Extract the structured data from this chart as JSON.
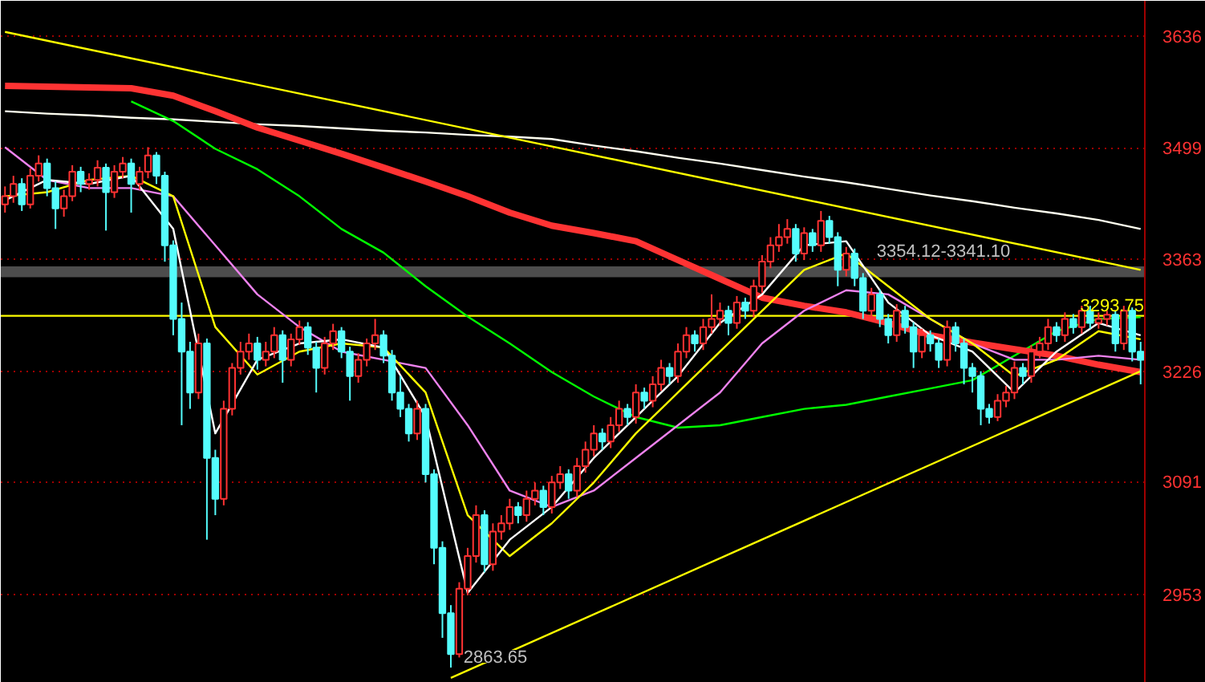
{
  "chart_data": {
    "type": "candlestick",
    "categories": [
      null,
      null,
      null,
      null,
      null,
      null,
      null,
      null,
      null,
      null,
      null,
      null,
      null,
      null,
      null,
      null,
      null,
      null,
      null,
      null,
      null,
      null,
      null,
      null,
      null,
      null,
      null,
      null,
      null,
      null,
      null,
      null,
      null,
      null,
      null,
      null,
      null,
      null,
      null,
      null,
      null,
      null,
      null,
      null,
      null,
      null,
      null,
      null,
      null,
      null,
      null,
      null,
      null,
      null,
      null,
      null,
      null,
      null,
      null,
      null,
      null,
      null,
      null,
      null,
      null,
      null,
      null,
      null,
      null,
      null,
      null,
      null,
      null,
      null,
      null,
      null,
      null,
      null,
      null,
      null,
      null,
      null,
      null,
      null,
      null,
      null,
      null,
      null,
      null,
      null,
      null,
      null,
      null,
      null,
      null,
      null,
      null,
      null,
      null,
      null,
      null,
      null,
      null,
      null,
      null,
      null,
      null,
      null,
      null,
      null,
      null,
      null,
      null,
      null,
      null,
      null,
      null,
      null,
      null,
      null,
      null,
      null,
      null,
      null,
      null,
      null,
      null,
      null,
      null,
      null,
      null,
      null,
      null,
      null,
      null,
      null
    ],
    "ohlc": [
      [
        3430,
        3452,
        3420,
        3440
      ],
      [
        3440,
        3465,
        3432,
        3455
      ],
      [
        3455,
        3462,
        3422,
        3430
      ],
      [
        3430,
        3474,
        3425,
        3465
      ],
      [
        3465,
        3490,
        3458,
        3480
      ],
      [
        3480,
        3486,
        3440,
        3450
      ],
      [
        3450,
        3458,
        3400,
        3425
      ],
      [
        3425,
        3448,
        3415,
        3440
      ],
      [
        3440,
        3478,
        3434,
        3470
      ],
      [
        3470,
        3476,
        3445,
        3455
      ],
      [
        3455,
        3468,
        3448,
        3460
      ],
      [
        3460,
        3484,
        3452,
        3475
      ],
      [
        3475,
        3480,
        3398,
        3445
      ],
      [
        3445,
        3478,
        3438,
        3470
      ],
      [
        3470,
        3488,
        3462,
        3480
      ],
      [
        3480,
        3486,
        3420,
        3455
      ],
      [
        3455,
        3476,
        3448,
        3470
      ],
      [
        3470,
        3500,
        3462,
        3490
      ],
      [
        3490,
        3494,
        3455,
        3465
      ],
      [
        3465,
        3470,
        3360,
        3380
      ],
      [
        3380,
        3386,
        3270,
        3290
      ],
      [
        3290,
        3310,
        3160,
        3250
      ],
      [
        3250,
        3262,
        3180,
        3200
      ],
      [
        3200,
        3272,
        3192,
        3260
      ],
      [
        3260,
        3266,
        3020,
        3120
      ],
      [
        3120,
        3130,
        3050,
        3070
      ],
      [
        3070,
        3190,
        3062,
        3180
      ],
      [
        3180,
        3236,
        3172,
        3230
      ],
      [
        3230,
        3262,
        3222,
        3250
      ],
      [
        3250,
        3272,
        3240,
        3260
      ],
      [
        3260,
        3268,
        3228,
        3240
      ],
      [
        3240,
        3262,
        3232,
        3250
      ],
      [
        3250,
        3280,
        3242,
        3270
      ],
      [
        3270,
        3276,
        3212,
        3240
      ],
      [
        3240,
        3272,
        3232,
        3265
      ],
      [
        3265,
        3288,
        3258,
        3280
      ],
      [
        3280,
        3286,
        3246,
        3255
      ],
      [
        3255,
        3262,
        3200,
        3230
      ],
      [
        3230,
        3268,
        3222,
        3260
      ],
      [
        3260,
        3284,
        3252,
        3275
      ],
      [
        3275,
        3280,
        3242,
        3250
      ],
      [
        3250,
        3256,
        3190,
        3220
      ],
      [
        3220,
        3248,
        3212,
        3240
      ],
      [
        3240,
        3266,
        3232,
        3260
      ],
      [
        3260,
        3290,
        3252,
        3270
      ],
      [
        3270,
        3276,
        3236,
        3245
      ],
      [
        3245,
        3252,
        3190,
        3200
      ],
      [
        3200,
        3220,
        3170,
        3180
      ],
      [
        3180,
        3186,
        3140,
        3150
      ],
      [
        3150,
        3190,
        3142,
        3180
      ],
      [
        3180,
        3186,
        3090,
        3100
      ],
      [
        3100,
        3106,
        2990,
        3010
      ],
      [
        3010,
        3018,
        2900,
        2930
      ],
      [
        2930,
        2940,
        2863.65,
        2880
      ],
      [
        2880,
        2968,
        2876,
        2960
      ],
      [
        2960,
        3010,
        2952,
        3000
      ],
      [
        3000,
        3062,
        2992,
        3050
      ],
      [
        3050,
        3056,
        2980,
        2990
      ],
      [
        2990,
        3040,
        2982,
        3030
      ],
      [
        3030,
        3050,
        3020,
        3040
      ],
      [
        3040,
        3070,
        3032,
        3060
      ],
      [
        3060,
        3066,
        3040,
        3050
      ],
      [
        3050,
        3080,
        3042,
        3070
      ],
      [
        3070,
        3090,
        3062,
        3080
      ],
      [
        3080,
        3086,
        3050,
        3060
      ],
      [
        3060,
        3098,
        3052,
        3090
      ],
      [
        3090,
        3110,
        3082,
        3100
      ],
      [
        3100,
        3106,
        3070,
        3080
      ],
      [
        3080,
        3120,
        3072,
        3110
      ],
      [
        3110,
        3140,
        3102,
        3130
      ],
      [
        3130,
        3160,
        3122,
        3150
      ],
      [
        3150,
        3156,
        3130,
        3140
      ],
      [
        3140,
        3170,
        3132,
        3160
      ],
      [
        3160,
        3190,
        3152,
        3180
      ],
      [
        3180,
        3186,
        3160,
        3170
      ],
      [
        3170,
        3210,
        3162,
        3200
      ],
      [
        3200,
        3206,
        3180,
        3190
      ],
      [
        3190,
        3220,
        3182,
        3210
      ],
      [
        3210,
        3240,
        3202,
        3230
      ],
      [
        3230,
        3236,
        3210,
        3220
      ],
      [
        3220,
        3260,
        3212,
        3250
      ],
      [
        3250,
        3280,
        3242,
        3270
      ],
      [
        3270,
        3276,
        3250,
        3260
      ],
      [
        3260,
        3290,
        3252,
        3280
      ],
      [
        3280,
        3320,
        3272,
        3290
      ],
      [
        3290,
        3310,
        3282,
        3300
      ],
      [
        3300,
        3306,
        3270,
        3285
      ],
      [
        3285,
        3318,
        3278,
        3310
      ],
      [
        3310,
        3316,
        3290,
        3300
      ],
      [
        3300,
        3338,
        3292,
        3330
      ],
      [
        3330,
        3368,
        3322,
        3360
      ],
      [
        3360,
        3390,
        3352,
        3380
      ],
      [
        3380,
        3406,
        3372,
        3390
      ],
      [
        3390,
        3412,
        3382,
        3400
      ],
      [
        3400,
        3406,
        3360,
        3370
      ],
      [
        3370,
        3402,
        3362,
        3395
      ],
      [
        3395,
        3400,
        3372,
        3380
      ],
      [
        3380,
        3422,
        3372,
        3410
      ],
      [
        3410,
        3416,
        3382,
        3390
      ],
      [
        3390,
        3396,
        3330,
        3350
      ],
      [
        3350,
        3378,
        3342,
        3370
      ],
      [
        3370,
        3376,
        3330,
        3340
      ],
      [
        3340,
        3346,
        3290,
        3300
      ],
      [
        3300,
        3328,
        3292,
        3320
      ],
      [
        3320,
        3326,
        3280,
        3290
      ],
      [
        3290,
        3296,
        3260,
        3270
      ],
      [
        3270,
        3308,
        3262,
        3300
      ],
      [
        3300,
        3306,
        3272,
        3280
      ],
      [
        3280,
        3286,
        3230,
        3250
      ],
      [
        3250,
        3278,
        3242,
        3270
      ],
      [
        3270,
        3276,
        3250,
        3260
      ],
      [
        3260,
        3266,
        3230,
        3240
      ],
      [
        3240,
        3288,
        3232,
        3280
      ],
      [
        3280,
        3286,
        3250,
        3260
      ],
      [
        3260,
        3266,
        3210,
        3230
      ],
      [
        3230,
        3236,
        3200,
        3220
      ],
      [
        3220,
        3226,
        3160,
        3180
      ],
      [
        3180,
        3186,
        3162,
        3170
      ],
      [
        3170,
        3198,
        3165,
        3190
      ],
      [
        3190,
        3208,
        3182,
        3200
      ],
      [
        3200,
        3238,
        3192,
        3230
      ],
      [
        3230,
        3236,
        3210,
        3220
      ],
      [
        3220,
        3258,
        3212,
        3250
      ],
      [
        3250,
        3268,
        3242,
        3260
      ],
      [
        3260,
        3290,
        3252,
        3280
      ],
      [
        3280,
        3286,
        3262,
        3270
      ],
      [
        3270,
        3298,
        3262,
        3290
      ],
      [
        3290,
        3296,
        3272,
        3280
      ],
      [
        3280,
        3306,
        3272,
        3300
      ],
      [
        3300,
        3306,
        3278,
        3285
      ],
      [
        3285,
        3298,
        3278,
        3290
      ],
      [
        3290,
        3300,
        3282,
        3295
      ],
      [
        3295,
        3300,
        3250,
        3260
      ],
      [
        3260,
        3306,
        3252,
        3300
      ],
      [
        3300,
        3304,
        3238,
        3250
      ],
      [
        3250,
        3262,
        3210,
        3240
      ]
    ],
    "series": [
      {
        "type": "line",
        "color": "#fffff0",
        "values": [
          3544,
          null,
          null,
          null,
          null,
          3541,
          null,
          null,
          null,
          null,
          3539,
          null,
          null,
          null,
          null,
          3536,
          null,
          null,
          null,
          null,
          3534,
          null,
          null,
          null,
          null,
          3531,
          null,
          null,
          null,
          null,
          3528,
          null,
          null,
          null,
          null,
          3526,
          null,
          null,
          null,
          null,
          3523,
          null,
          null,
          null,
          null,
          3520,
          null,
          null,
          null,
          null,
          3518,
          null,
          null,
          null,
          null,
          3515,
          null,
          null,
          null,
          null,
          3513,
          null,
          null,
          null,
          null,
          3510,
          null,
          null,
          null,
          null,
          3502,
          null,
          null,
          null,
          null,
          3495,
          null,
          null,
          null,
          null,
          3487,
          null,
          null,
          null,
          null,
          3480,
          null,
          null,
          null,
          null,
          3472,
          null,
          null,
          null,
          null,
          3464,
          null,
          null,
          null,
          null,
          3457,
          null,
          null,
          null,
          null,
          3449,
          null,
          null,
          null,
          null,
          3441,
          null,
          null,
          null,
          null,
          3434,
          null,
          null,
          null,
          null,
          3426,
          null,
          null,
          null,
          null,
          3419,
          null,
          null,
          null,
          null,
          3411,
          null,
          null,
          null,
          null,
          3400
        ]
      },
      {
        "type": "line",
        "color": "#00ff00",
        "values": [
          null,
          null,
          null,
          null,
          null,
          null,
          null,
          null,
          null,
          null,
          null,
          null,
          null,
          null,
          null,
          3556,
          null,
          null,
          null,
          null,
          3532,
          null,
          null,
          null,
          null,
          3498,
          null,
          null,
          null,
          null,
          3473,
          null,
          null,
          null,
          null,
          3440,
          null,
          null,
          null,
          null,
          3400,
          null,
          null,
          null,
          null,
          3371,
          null,
          null,
          null,
          null,
          3330,
          null,
          null,
          null,
          null,
          3293,
          null,
          null,
          null,
          null,
          3260,
          null,
          null,
          null,
          null,
          3225,
          null,
          null,
          null,
          null,
          3195,
          null,
          null,
          null,
          null,
          3170,
          null,
          null,
          null,
          null,
          3157,
          null,
          null,
          null,
          null,
          3160,
          null,
          null,
          null,
          null,
          3170,
          null,
          null,
          null,
          null,
          3180,
          null,
          null,
          null,
          null,
          3185,
          null,
          null,
          null,
          null,
          3195,
          null,
          null,
          null,
          null,
          3205,
          null,
          null,
          null,
          null,
          3215,
          null,
          null,
          null,
          null,
          3245,
          null,
          null,
          null,
          null,
          3275,
          null,
          null,
          null,
          null,
          3290,
          null,
          null,
          null,
          null,
          3292
        ]
      },
      {
        "type": "line",
        "color": "#ff3333",
        "values": [
          3575,
          null,
          null,
          null,
          null,
          3574,
          null,
          null,
          null,
          null,
          3573,
          null,
          null,
          null,
          null,
          3572,
          null,
          null,
          null,
          null,
          3563,
          null,
          null,
          null,
          null,
          3544,
          null,
          null,
          null,
          null,
          3524,
          null,
          null,
          null,
          null,
          3508,
          null,
          null,
          null,
          null,
          3492,
          null,
          null,
          null,
          null,
          3475,
          null,
          null,
          null,
          null,
          3458,
          null,
          null,
          null,
          null,
          3440,
          null,
          null,
          null,
          null,
          3420,
          null,
          null,
          null,
          null,
          3404,
          null,
          null,
          null,
          null,
          3395,
          null,
          null,
          null,
          null,
          3385,
          null,
          null,
          null,
          null,
          3362,
          null,
          null,
          null,
          null,
          3339,
          null,
          null,
          null,
          null,
          3316,
          null,
          null,
          null,
          null,
          3306,
          null,
          null,
          null,
          null,
          3298,
          null,
          null,
          null,
          null,
          3285,
          null,
          null,
          null,
          null,
          3270,
          null,
          null,
          null,
          null,
          3261,
          null,
          null,
          null,
          null,
          3253,
          null,
          null,
          null,
          null,
          3245,
          null,
          null,
          null,
          null,
          3234,
          null,
          null,
          null,
          null,
          3225
        ]
      },
      {
        "type": "line",
        "color": "#ee82ee",
        "values": [
          3500,
          null,
          null,
          null,
          null,
          3460,
          null,
          null,
          null,
          null,
          3450,
          null,
          null,
          null,
          null,
          3450,
          null,
          null,
          null,
          null,
          3440,
          null,
          null,
          null,
          null,
          3380,
          null,
          null,
          null,
          null,
          3320,
          null,
          null,
          null,
          null,
          3280,
          null,
          null,
          null,
          null,
          3250,
          null,
          null,
          null,
          null,
          3240,
          null,
          null,
          null,
          null,
          3230,
          null,
          null,
          null,
          null,
          3160,
          null,
          null,
          null,
          null,
          3080,
          null,
          null,
          null,
          null,
          3060,
          null,
          null,
          null,
          null,
          3080,
          null,
          null,
          null,
          null,
          3120,
          null,
          null,
          null,
          null,
          3160,
          null,
          null,
          null,
          null,
          3200,
          null,
          null,
          null,
          null,
          3260,
          null,
          null,
          null,
          null,
          3300,
          null,
          null,
          null,
          null,
          3325,
          null,
          null,
          null,
          null,
          3320,
          null,
          null,
          null,
          null,
          3290,
          null,
          null,
          null,
          null,
          3260,
          null,
          null,
          null,
          null,
          3240,
          null,
          null,
          null,
          null,
          3240,
          null,
          null,
          null,
          null,
          3245,
          null,
          null,
          null,
          null,
          3240
        ]
      },
      {
        "type": "line",
        "color": "#ffff00",
        "values": [
          3440,
          null,
          null,
          null,
          null,
          3445,
          null,
          null,
          null,
          null,
          3460,
          null,
          null,
          null,
          null,
          3465,
          null,
          null,
          null,
          null,
          3440,
          null,
          null,
          null,
          null,
          3280,
          null,
          null,
          null,
          null,
          3222,
          null,
          null,
          null,
          null,
          3250,
          null,
          null,
          null,
          null,
          3260,
          null,
          null,
          null,
          null,
          3255,
          null,
          null,
          null,
          null,
          3200,
          null,
          null,
          null,
          null,
          3050,
          null,
          null,
          null,
          null,
          3000,
          null,
          null,
          null,
          null,
          3040,
          null,
          null,
          null,
          null,
          3090,
          null,
          null,
          null,
          null,
          3150,
          null,
          null,
          null,
          null,
          3200,
          null,
          null,
          null,
          null,
          3250,
          null,
          null,
          null,
          null,
          3300,
          null,
          null,
          null,
          null,
          3350,
          null,
          null,
          null,
          null,
          3370,
          null,
          null,
          null,
          null,
          3330,
          null,
          null,
          null,
          null,
          3290,
          null,
          null,
          null,
          null,
          3260,
          null,
          null,
          null,
          null,
          3220,
          null,
          null,
          null,
          null,
          3240,
          null,
          null,
          null,
          null,
          3275,
          null,
          null,
          null,
          null,
          3265
        ]
      },
      {
        "type": "line",
        "color": "#ffffff",
        "values": [
          3435,
          null,
          null,
          null,
          null,
          3460,
          null,
          null,
          null,
          null,
          3455,
          null,
          null,
          null,
          null,
          3465,
          null,
          null,
          null,
          null,
          3400,
          null,
          null,
          null,
          null,
          3150,
          null,
          null,
          null,
          null,
          3240,
          null,
          null,
          null,
          null,
          3260,
          null,
          null,
          null,
          null,
          3265,
          null,
          null,
          null,
          null,
          3255,
          null,
          null,
          null,
          null,
          3170,
          null,
          null,
          null,
          null,
          2955,
          null,
          null,
          null,
          null,
          3020,
          null,
          null,
          null,
          null,
          3060,
          null,
          null,
          null,
          null,
          3120,
          null,
          null,
          null,
          null,
          3170,
          null,
          null,
          null,
          null,
          3220,
          null,
          null,
          null,
          null,
          3285,
          null,
          null,
          null,
          null,
          3320,
          null,
          null,
          null,
          null,
          3380,
          null,
          null,
          null,
          null,
          3385,
          null,
          null,
          null,
          null,
          3310,
          null,
          null,
          null,
          null,
          3270,
          null,
          null,
          null,
          null,
          3250,
          null,
          null,
          null,
          null,
          3200,
          null,
          null,
          null,
          null,
          3250,
          null,
          null,
          null,
          null,
          3285,
          null,
          null,
          null,
          null,
          3270
        ]
      },
      {
        "type": "line",
        "color": "#ffff00",
        "values": [
          3641,
          null,
          null,
          null,
          null,
          null,
          null,
          null,
          null,
          null,
          null,
          null,
          null,
          null,
          null,
          null,
          null,
          null,
          null,
          null,
          null,
          null,
          null,
          null,
          null,
          null,
          null,
          null,
          null,
          null,
          null,
          null,
          null,
          null,
          null,
          null,
          null,
          null,
          null,
          null,
          null,
          null,
          null,
          null,
          null,
          null,
          null,
          null,
          null,
          null,
          null,
          null,
          null,
          null,
          null,
          null,
          null,
          null,
          null,
          null,
          null,
          null,
          null,
          null,
          null,
          null,
          null,
          null,
          null,
          null,
          null,
          null,
          null,
          null,
          null,
          null,
          null,
          null,
          null,
          null,
          null,
          null,
          null,
          null,
          null,
          null,
          null,
          null,
          null,
          null,
          null,
          null,
          null,
          null,
          null,
          null,
          null,
          null,
          null,
          null,
          null,
          null,
          null,
          null,
          null,
          null,
          null,
          null,
          null,
          null,
          null,
          null,
          null,
          null,
          null,
          null,
          null,
          null,
          null,
          null,
          null,
          null,
          null,
          null,
          null,
          null,
          null,
          null,
          null,
          null,
          null,
          null,
          null,
          null,
          null,
          3350
        ]
      },
      {
        "type": "line",
        "color": "#ffff00",
        "values": [
          null,
          null,
          null,
          null,
          null,
          null,
          null,
          null,
          null,
          null,
          null,
          null,
          null,
          null,
          null,
          null,
          null,
          null,
          null,
          null,
          null,
          null,
          null,
          null,
          null,
          null,
          null,
          null,
          null,
          null,
          null,
          null,
          null,
          null,
          null,
          null,
          null,
          null,
          null,
          null,
          null,
          null,
          null,
          null,
          null,
          null,
          null,
          null,
          null,
          null,
          null,
          null,
          null,
          2851,
          null,
          null,
          null,
          null,
          null,
          null,
          null,
          null,
          null,
          null,
          null,
          null,
          null,
          null,
          null,
          null,
          null,
          null,
          null,
          null,
          null,
          null,
          null,
          null,
          null,
          null,
          null,
          null,
          null,
          null,
          null,
          null,
          null,
          null,
          null,
          null,
          null,
          null,
          null,
          null,
          null,
          null,
          null,
          null,
          null,
          null,
          null,
          null,
          null,
          null,
          null,
          null,
          null,
          null,
          null,
          null,
          null,
          null,
          null,
          null,
          null,
          null,
          null,
          null,
          null,
          null,
          null,
          null,
          null,
          null,
          null,
          null,
          null,
          null,
          null,
          null,
          null,
          null,
          null,
          null,
          null,
          3226
        ]
      }
    ],
    "ylim": [
      2845,
      3679
    ],
    "yticks": [
      3636,
      3499,
      3363,
      3226,
      3091,
      2953
    ],
    "grid": "y",
    "tick_labels": "y",
    "ref_lines": [
      {
        "axis": "y",
        "value": 3293.75,
        "label": "3293.75",
        "color": "#ffff00"
      }
    ],
    "bands": [
      {
        "axis": "y",
        "from": 3341.1,
        "to": 3354.12,
        "label": "3354.12-3341.10",
        "color": "#808080"
      }
    ],
    "annotations": [
      "2863.65"
    ]
  }
}
